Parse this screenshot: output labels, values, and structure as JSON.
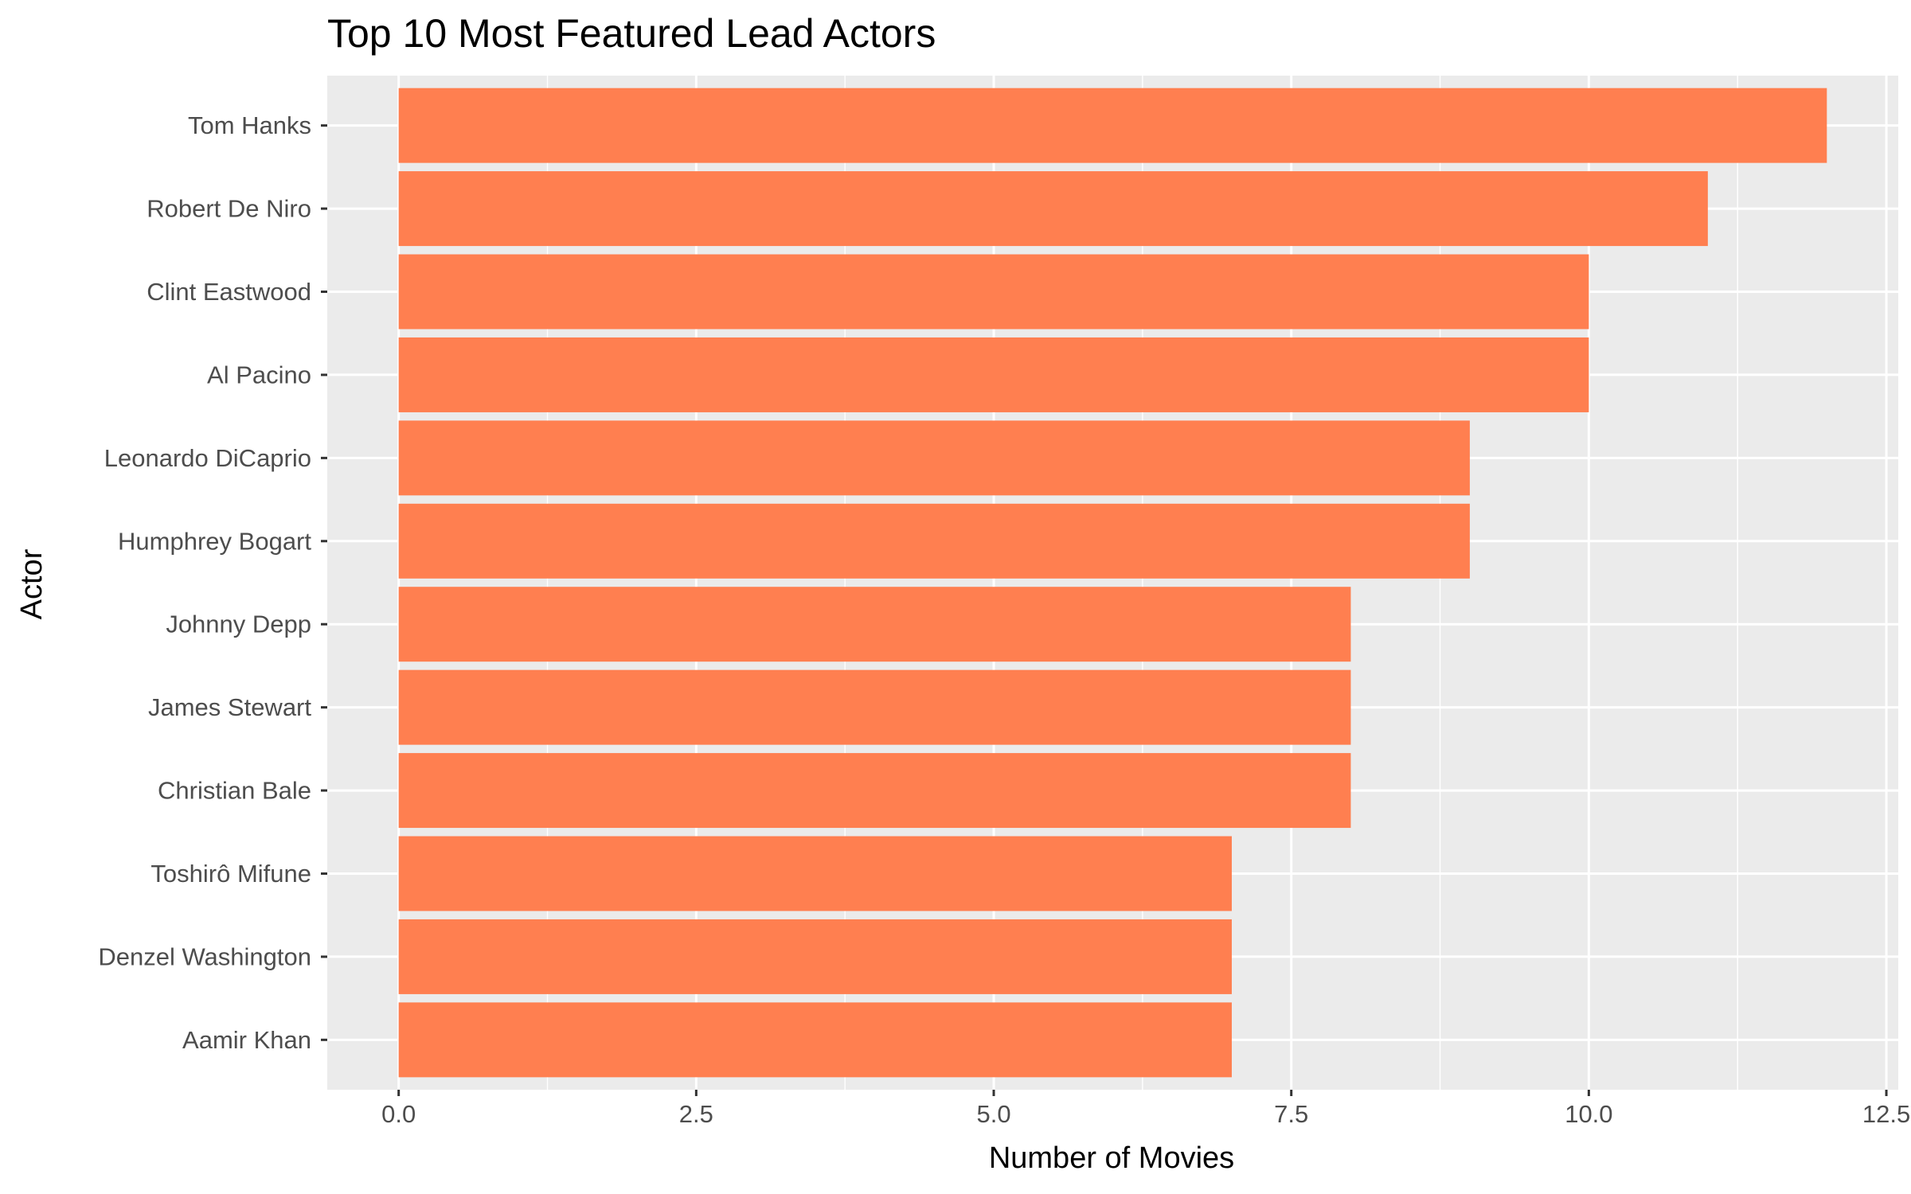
{
  "chart_data": {
    "type": "bar",
    "orientation": "horizontal",
    "title": "Top 10 Most Featured Lead Actors",
    "xlabel": "Number of Movies",
    "ylabel": "Actor",
    "categories": [
      "Tom Hanks",
      "Robert De Niro",
      "Clint Eastwood",
      "Al Pacino",
      "Leonardo DiCaprio",
      "Humphrey Bogart",
      "Johnny Depp",
      "James Stewart",
      "Christian Bale",
      "Toshirô Mifune",
      "Denzel Washington",
      "Aamir Khan"
    ],
    "values": [
      12,
      11,
      10,
      10,
      9,
      9,
      8,
      8,
      8,
      7,
      7,
      7
    ],
    "xlim": [
      -0.6,
      12.6
    ],
    "x_ticks": [
      0,
      2.5,
      5,
      7.5,
      10,
      12.5
    ],
    "x_tick_labels": [
      "0.0",
      "2.5",
      "5.0",
      "7.5",
      "10.0",
      "12.5"
    ],
    "grid": true,
    "colors": {
      "bar": "#ff7f50",
      "panel_background": "#ebebeb",
      "grid_line": "#ffffff",
      "tick_label": "#4d4d4d",
      "tick_mark": "#333333"
    }
  }
}
